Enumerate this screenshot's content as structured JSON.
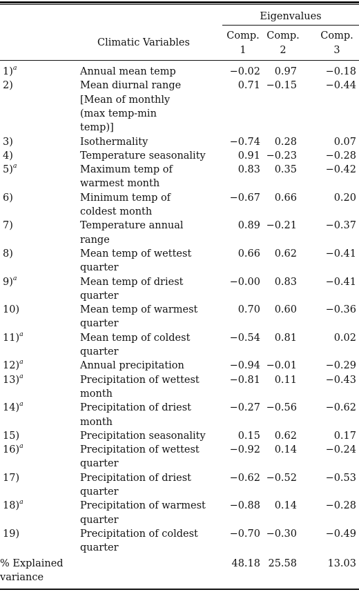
{
  "table": {
    "header": {
      "group_label": "Eigenvalues",
      "variables_label": "Climatic Variables",
      "components": [
        "Comp.\n1",
        "Comp.\n2",
        "Comp.\n3"
      ]
    },
    "rows": [
      {
        "num": "1)",
        "sup": "a",
        "lines": [
          "Annual mean temp"
        ],
        "values": [
          "−0.02",
          "0.97",
          "−0.18"
        ]
      },
      {
        "num": "2)",
        "sup": "",
        "lines": [
          "Mean diurnal range",
          "[Mean of monthly",
          "(max temp-min",
          "temp)]"
        ],
        "values": [
          "0.71",
          "−0.15",
          "−0.44"
        ]
      },
      {
        "num": "3)",
        "sup": "",
        "lines": [
          "Isothermality"
        ],
        "values": [
          "−0.74",
          "0.28",
          "0.07"
        ]
      },
      {
        "num": "4)",
        "sup": "",
        "lines": [
          "Temperature seasonality"
        ],
        "values": [
          "0.91",
          "−0.23",
          "−0.28"
        ]
      },
      {
        "num": "5)",
        "sup": "a",
        "lines": [
          "Maximum temp of",
          "warmest month"
        ],
        "values": [
          "0.83",
          "0.35",
          "−0.42"
        ]
      },
      {
        "num": "6)",
        "sup": "",
        "lines": [
          "Minimum temp of",
          "coldest month"
        ],
        "values": [
          "−0.67",
          "0.66",
          "0.20"
        ]
      },
      {
        "num": "7)",
        "sup": "",
        "lines": [
          "Temperature annual",
          "range"
        ],
        "values": [
          "0.89",
          "−0.21",
          "−0.37"
        ]
      },
      {
        "num": "8)",
        "sup": "",
        "lines": [
          "Mean temp of wettest",
          "quarter"
        ],
        "values": [
          "0.66",
          "0.62",
          "−0.41"
        ]
      },
      {
        "num": "9)",
        "sup": "a",
        "lines": [
          "Mean temp of driest",
          "quarter"
        ],
        "values": [
          "−0.00",
          "0.83",
          "−0.41"
        ]
      },
      {
        "num": "10)",
        "sup": "",
        "lines": [
          "Mean temp of warmest",
          "quarter"
        ],
        "values": [
          "0.70",
          "0.60",
          "−0.36"
        ]
      },
      {
        "num": "11)",
        "sup": "a",
        "lines": [
          "Mean temp of coldest",
          "quarter"
        ],
        "values": [
          "−0.54",
          "0.81",
          "0.02"
        ]
      },
      {
        "num": "12)",
        "sup": "a",
        "lines": [
          "Annual precipitation"
        ],
        "values": [
          "−0.94",
          "−0.01",
          "−0.29"
        ]
      },
      {
        "num": "13)",
        "sup": "a",
        "lines": [
          "Precipitation of wettest",
          "month"
        ],
        "values": [
          "−0.81",
          "0.11",
          "−0.43"
        ]
      },
      {
        "num": "14)",
        "sup": "a",
        "lines": [
          "Precipitation of driest",
          "month"
        ],
        "values": [
          "−0.27",
          "−0.56",
          "−0.62"
        ]
      },
      {
        "num": "15)",
        "sup": "",
        "lines": [
          "Precipitation seasonality"
        ],
        "values": [
          "0.15",
          "0.62",
          "0.17"
        ]
      },
      {
        "num": "16)",
        "sup": "a",
        "lines": [
          "Precipitation of wettest",
          "quarter"
        ],
        "values": [
          "−0.92",
          "0.14",
          "−0.24"
        ]
      },
      {
        "num": "17)",
        "sup": "",
        "lines": [
          "Precipitation of driest",
          "quarter"
        ],
        "values": [
          "−0.62",
          "−0.52",
          "−0.53"
        ]
      },
      {
        "num": "18)",
        "sup": "a",
        "lines": [
          "Precipitation of warmest",
          "quarter"
        ],
        "values": [
          "−0.88",
          "0.14",
          "−0.28"
        ]
      },
      {
        "num": "19)",
        "sup": "",
        "lines": [
          "Precipitation of coldest",
          "quarter"
        ],
        "values": [
          "−0.70",
          "−0.30",
          "−0.49"
        ]
      }
    ],
    "footer": {
      "label": "% Explained\nvariance",
      "values": [
        "48.18",
        "25.58",
        "13.03"
      ]
    }
  }
}
